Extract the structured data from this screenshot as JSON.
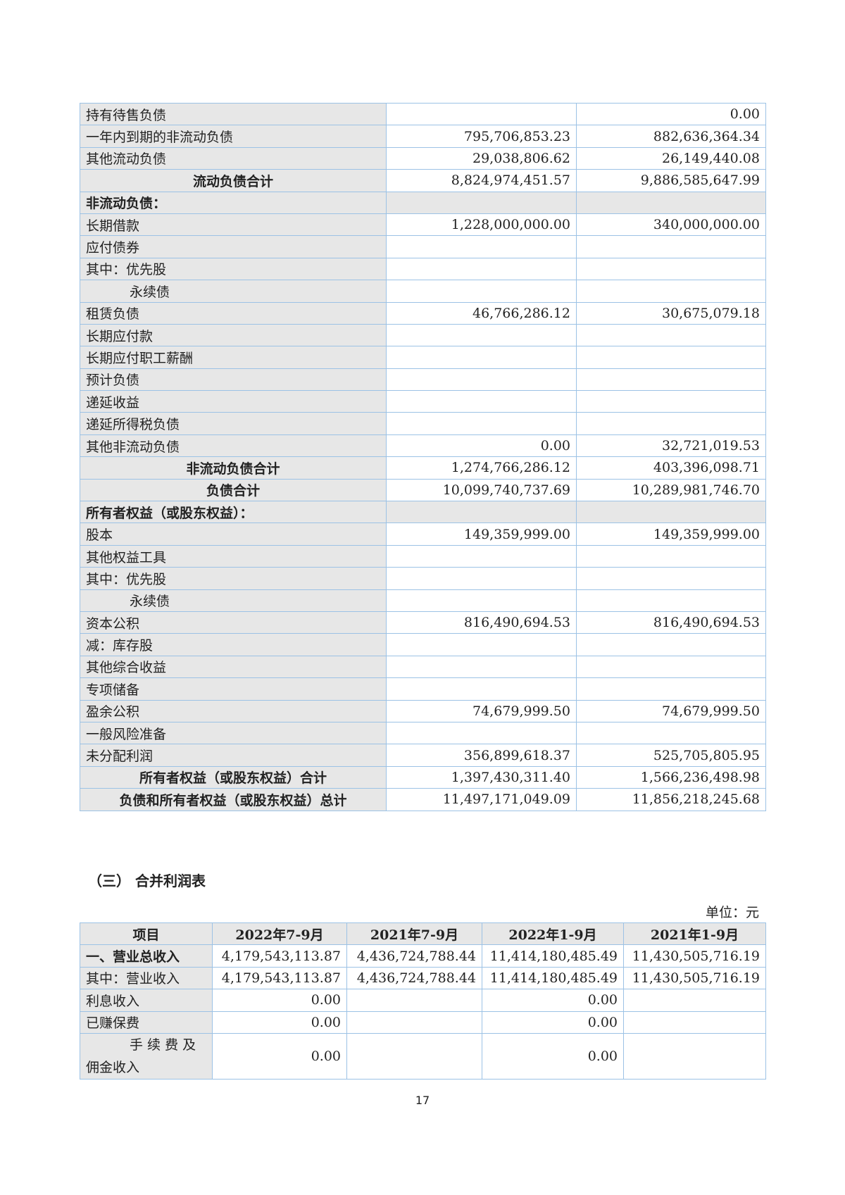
{
  "balance_sheet": {
    "rows": [
      {
        "label": "持有待售负债",
        "a": "",
        "b": "0.00",
        "style": "normal"
      },
      {
        "label": "一年内到期的非流动负债",
        "a": "795,706,853.23",
        "b": "882,636,364.34",
        "style": "normal"
      },
      {
        "label": "其他流动负债",
        "a": "29,038,806.62",
        "b": "26,149,440.08",
        "style": "normal"
      },
      {
        "label": "流动负债合计",
        "a": "8,824,974,451.57",
        "b": "9,886,585,647.99",
        "style": "total"
      },
      {
        "label": "非流动负债：",
        "a": "",
        "b": "",
        "style": "section"
      },
      {
        "label": "长期借款",
        "a": "1,228,000,000.00",
        "b": "340,000,000.00",
        "style": "normal"
      },
      {
        "label": "应付债券",
        "a": "",
        "b": "",
        "style": "normal"
      },
      {
        "label": "其中：优先股",
        "a": "",
        "b": "",
        "style": "normal"
      },
      {
        "label": "永续债",
        "a": "",
        "b": "",
        "style": "indent"
      },
      {
        "label": "租赁负债",
        "a": "46,766,286.12",
        "b": "30,675,079.18",
        "style": "normal"
      },
      {
        "label": "长期应付款",
        "a": "",
        "b": "",
        "style": "normal"
      },
      {
        "label": "长期应付职工薪酬",
        "a": "",
        "b": "",
        "style": "normal"
      },
      {
        "label": "预计负债",
        "a": "",
        "b": "",
        "style": "normal"
      },
      {
        "label": "递延收益",
        "a": "",
        "b": "",
        "style": "normal"
      },
      {
        "label": "递延所得税负债",
        "a": "",
        "b": "",
        "style": "normal"
      },
      {
        "label": "其他非流动负债",
        "a": "0.00",
        "b": "32,721,019.53",
        "style": "normal"
      },
      {
        "label": "非流动负债合计",
        "a": "1,274,766,286.12",
        "b": "403,396,098.71",
        "style": "total"
      },
      {
        "label": "负债合计",
        "a": "10,099,740,737.69",
        "b": "10,289,981,746.70",
        "style": "total"
      },
      {
        "label": "所有者权益（或股东权益）：",
        "a": "",
        "b": "",
        "style": "section"
      },
      {
        "label": "股本",
        "a": "149,359,999.00",
        "b": "149,359,999.00",
        "style": "normal"
      },
      {
        "label": "其他权益工具",
        "a": "",
        "b": "",
        "style": "normal"
      },
      {
        "label": "其中：优先股",
        "a": "",
        "b": "",
        "style": "normal"
      },
      {
        "label": "永续债",
        "a": "",
        "b": "",
        "style": "indent"
      },
      {
        "label": "资本公积",
        "a": "816,490,694.53",
        "b": "816,490,694.53",
        "style": "normal"
      },
      {
        "label": "减：库存股",
        "a": "",
        "b": "",
        "style": "normal"
      },
      {
        "label": "其他综合收益",
        "a": "",
        "b": "",
        "style": "normal"
      },
      {
        "label": "专项储备",
        "a": "",
        "b": "",
        "style": "normal"
      },
      {
        "label": "盈余公积",
        "a": "74,679,999.50",
        "b": "74,679,999.50",
        "style": "normal"
      },
      {
        "label": "一般风险准备",
        "a": "",
        "b": "",
        "style": "normal"
      },
      {
        "label": "未分配利润",
        "a": "356,899,618.37",
        "b": "525,705,805.95",
        "style": "normal"
      },
      {
        "label": "所有者权益（或股东权益）合计",
        "a": "1,397,430,311.40",
        "b": "1,566,236,498.98",
        "style": "total"
      },
      {
        "label": "负债和所有者权益（或股东权益）总计",
        "a": "11,497,171,049.09",
        "b": "11,856,218,245.68",
        "style": "total"
      }
    ]
  },
  "income_statement": {
    "section_title": "（三） 合并利润表",
    "unit": "单位：元",
    "headers": [
      "项目",
      "2022年7-9月",
      "2021年7-9月",
      "2022年1-9月",
      "2021年1-9月"
    ],
    "rows": [
      {
        "label": "一、营业总收入",
        "values": [
          "4,179,543,113.87",
          "4,436,724,788.44",
          "11,414,180,485.49",
          "11,430,505,716.19"
        ],
        "style": "bold"
      },
      {
        "label": "其中：营业收入",
        "values": [
          "4,179,543,113.87",
          "4,436,724,788.44",
          "11,414,180,485.49",
          "11,430,505,716.19"
        ],
        "style": "normal"
      },
      {
        "label": "利息收入",
        "values": [
          "0.00",
          "",
          "0.00",
          ""
        ],
        "style": "indent"
      },
      {
        "label": "已赚保费",
        "values": [
          "0.00",
          "",
          "0.00",
          ""
        ],
        "style": "indent"
      },
      {
        "label": "手 续 费 及 佣金收入",
        "values": [
          "0.00",
          "",
          "0.00",
          ""
        ],
        "style": "wrap"
      }
    ]
  },
  "page_number": "17",
  "colors": {
    "border": "#9cc2e5",
    "label_bg": "#e7e7e7"
  }
}
